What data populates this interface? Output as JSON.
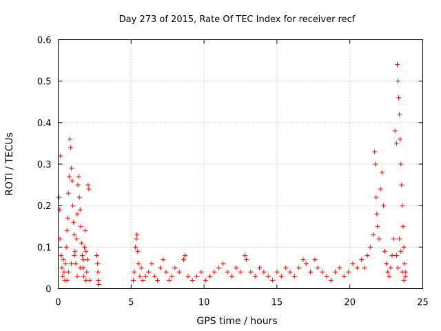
{
  "chart_data": {
    "type": "scatter",
    "title": "Day 273 of 2015, Rate Of TEC Index for receiver recf",
    "xlabel": "GPS time / hours",
    "ylabel": "ROTI / TECUs",
    "xlim": [
      0,
      25
    ],
    "ylim": [
      0,
      0.6
    ],
    "xticks": [
      0,
      5,
      10,
      15,
      20,
      25
    ],
    "yticks": [
      0,
      0.1,
      0.2,
      0.3,
      0.4,
      0.5,
      0.6
    ],
    "xtick_labels": [
      "0",
      "5",
      "10",
      "15",
      "20",
      "25"
    ],
    "ytick_labels": [
      "0",
      "0.1",
      "0.2",
      "0.3",
      "0.4",
      "0.5",
      "0.6"
    ],
    "grid": true,
    "marker": "+",
    "color": "#ff0000",
    "series": [
      {
        "points": [
          [
            0.05,
            0.22
          ],
          [
            0.1,
            0.19
          ],
          [
            0.12,
            0.12
          ],
          [
            0.15,
            0.32
          ],
          [
            0.2,
            0.08
          ],
          [
            0.25,
            0.05
          ],
          [
            0.3,
            0.03
          ],
          [
            0.35,
            0.07
          ],
          [
            0.4,
            0.04
          ],
          [
            0.45,
            0.02
          ],
          [
            0.5,
            0.06
          ],
          [
            0.55,
            0.1
          ],
          [
            0.6,
            0.14
          ],
          [
            0.65,
            0.17
          ],
          [
            0.7,
            0.23
          ],
          [
            0.75,
            0.27
          ],
          [
            0.8,
            0.36
          ],
          [
            0.85,
            0.34
          ],
          [
            0.9,
            0.29
          ],
          [
            0.95,
            0.26
          ],
          [
            1.0,
            0.2
          ],
          [
            1.05,
            0.16
          ],
          [
            1.1,
            0.13
          ],
          [
            1.15,
            0.09
          ],
          [
            1.2,
            0.06
          ],
          [
            1.25,
            0.12
          ],
          [
            1.3,
            0.18
          ],
          [
            1.35,
            0.25
          ],
          [
            1.4,
            0.27
          ],
          [
            1.45,
            0.22
          ],
          [
            1.5,
            0.19
          ],
          [
            1.55,
            0.15
          ],
          [
            1.6,
            0.11
          ],
          [
            1.65,
            0.08
          ],
          [
            1.7,
            0.05
          ],
          [
            1.75,
            0.03
          ],
          [
            1.8,
            0.1
          ],
          [
            1.85,
            0.14
          ],
          [
            1.9,
            0.09
          ],
          [
            1.95,
            0.04
          ],
          [
            2.0,
            0.07
          ],
          [
            2.05,
            0.25
          ],
          [
            2.1,
            0.24
          ],
          [
            2.15,
            0.02
          ],
          [
            0.6,
            0.02
          ],
          [
            0.7,
            0.04
          ],
          [
            0.9,
            0.06
          ],
          [
            1.1,
            0.08
          ],
          [
            1.3,
            0.03
          ],
          [
            1.5,
            0.05
          ],
          [
            1.7,
            0.07
          ],
          [
            1.9,
            0.02
          ],
          [
            2.65,
            0.08
          ],
          [
            2.7,
            0.06
          ],
          [
            2.72,
            0.04
          ],
          [
            2.75,
            0.02
          ],
          [
            2.78,
            0.01
          ],
          [
            5.15,
            0.02
          ],
          [
            5.2,
            0.04
          ],
          [
            5.3,
            0.1
          ],
          [
            5.35,
            0.12
          ],
          [
            5.4,
            0.13
          ],
          [
            5.45,
            0.09
          ],
          [
            5.5,
            0.06
          ],
          [
            5.6,
            0.03
          ],
          [
            5.7,
            0.05
          ],
          [
            5.8,
            0.02
          ],
          [
            6.0,
            0.03
          ],
          [
            6.2,
            0.04
          ],
          [
            6.4,
            0.06
          ],
          [
            6.6,
            0.03
          ],
          [
            6.8,
            0.02
          ],
          [
            7.0,
            0.05
          ],
          [
            7.2,
            0.07
          ],
          [
            7.4,
            0.04
          ],
          [
            7.6,
            0.02
          ],
          [
            7.8,
            0.03
          ],
          [
            8.0,
            0.05
          ],
          [
            8.3,
            0.04
          ],
          [
            8.6,
            0.07
          ],
          [
            8.7,
            0.08
          ],
          [
            8.9,
            0.03
          ],
          [
            9.2,
            0.02
          ],
          [
            9.5,
            0.03
          ],
          [
            9.8,
            0.04
          ],
          [
            10.1,
            0.02
          ],
          [
            10.4,
            0.03
          ],
          [
            10.7,
            0.04
          ],
          [
            11.0,
            0.05
          ],
          [
            11.3,
            0.06
          ],
          [
            11.6,
            0.04
          ],
          [
            11.9,
            0.03
          ],
          [
            12.2,
            0.05
          ],
          [
            12.5,
            0.04
          ],
          [
            12.8,
            0.08
          ],
          [
            12.9,
            0.07
          ],
          [
            13.2,
            0.04
          ],
          [
            13.5,
            0.03
          ],
          [
            13.8,
            0.05
          ],
          [
            14.1,
            0.04
          ],
          [
            14.4,
            0.03
          ],
          [
            14.7,
            0.02
          ],
          [
            15.0,
            0.04
          ],
          [
            15.3,
            0.03
          ],
          [
            15.6,
            0.05
          ],
          [
            15.9,
            0.04
          ],
          [
            16.2,
            0.03
          ],
          [
            16.5,
            0.05
          ],
          [
            16.8,
            0.07
          ],
          [
            17.0,
            0.06
          ],
          [
            17.3,
            0.04
          ],
          [
            17.6,
            0.07
          ],
          [
            17.8,
            0.05
          ],
          [
            18.1,
            0.04
          ],
          [
            18.4,
            0.03
          ],
          [
            18.7,
            0.02
          ],
          [
            19.0,
            0.04
          ],
          [
            19.3,
            0.05
          ],
          [
            19.6,
            0.03
          ],
          [
            19.9,
            0.04
          ],
          [
            20.2,
            0.06
          ],
          [
            20.5,
            0.05
          ],
          [
            20.8,
            0.07
          ],
          [
            21.0,
            0.05
          ],
          [
            21.2,
            0.08
          ],
          [
            21.4,
            0.1
          ],
          [
            21.6,
            0.13
          ],
          [
            21.7,
            0.33
          ],
          [
            21.75,
            0.3
          ],
          [
            21.8,
            0.22
          ],
          [
            21.85,
            0.18
          ],
          [
            21.9,
            0.15
          ],
          [
            22.0,
            0.12
          ],
          [
            22.1,
            0.24
          ],
          [
            22.2,
            0.28
          ],
          [
            22.3,
            0.2
          ],
          [
            22.4,
            0.09
          ],
          [
            22.5,
            0.06
          ],
          [
            22.6,
            0.04
          ],
          [
            22.7,
            0.03
          ],
          [
            22.8,
            0.05
          ],
          [
            22.9,
            0.08
          ],
          [
            23.0,
            0.12
          ],
          [
            23.1,
            0.38
          ],
          [
            23.2,
            0.35
          ],
          [
            23.25,
            0.54
          ],
          [
            23.3,
            0.5
          ],
          [
            23.35,
            0.46
          ],
          [
            23.4,
            0.42
          ],
          [
            23.45,
            0.36
          ],
          [
            23.5,
            0.3
          ],
          [
            23.55,
            0.25
          ],
          [
            23.6,
            0.2
          ],
          [
            23.65,
            0.15
          ],
          [
            23.7,
            0.1
          ],
          [
            23.75,
            0.06
          ],
          [
            23.8,
            0.03
          ],
          [
            23.2,
            0.08
          ],
          [
            23.3,
            0.05
          ],
          [
            23.4,
            0.12
          ],
          [
            23.5,
            0.09
          ],
          [
            23.6,
            0.04
          ],
          [
            23.7,
            0.02
          ],
          [
            23.8,
            0.04
          ]
        ]
      }
    ]
  }
}
